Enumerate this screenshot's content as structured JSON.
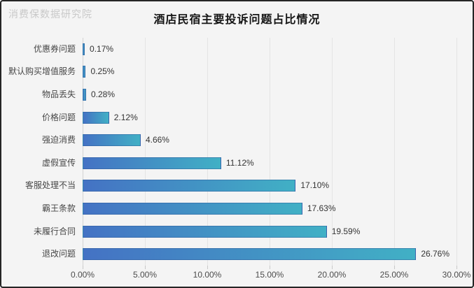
{
  "watermark": "消费保数据研究院",
  "chart_data": {
    "type": "bar",
    "orientation": "horizontal",
    "title": "酒店民宿主要投诉问题占比情况",
    "categories": [
      "优惠券问题",
      "默认购买增值服务",
      "物品丢失",
      "价格问题",
      "强迫消费",
      "虚假宣传",
      "客服处理不当",
      "霸王条款",
      "未履行合同",
      "退改问题"
    ],
    "values": [
      0.17,
      0.25,
      0.28,
      2.12,
      4.66,
      11.12,
      17.1,
      17.63,
      19.59,
      26.76
    ],
    "value_labels": [
      "0.17%",
      "0.25%",
      "0.28%",
      "2.12%",
      "4.66%",
      "11.12%",
      "17.10%",
      "17.63%",
      "19.59%",
      "26.76%"
    ],
    "x_tick_labels": [
      "0.00%",
      "5.00%",
      "10.00%",
      "15.00%",
      "20.00%",
      "25.00%",
      "30.00%"
    ],
    "x_tick_values": [
      0,
      5,
      10,
      15,
      20,
      25,
      30
    ],
    "xlim": [
      0,
      30
    ],
    "xlabel": "",
    "ylabel": "",
    "grid": true,
    "legend": "none",
    "data_labels": "outside-end"
  },
  "colors": {
    "bar_gradient_start": "#4472c4",
    "bar_gradient_end": "#41b0c5",
    "background": "#f4f4f4",
    "frame_border": "#252525",
    "gridline": "#e4e4e4",
    "axis_line": "#d2d2d2",
    "title_text": "#151515",
    "label_text": "#474747",
    "value_text": "#333333",
    "watermark_text": "#c9c9c9"
  }
}
